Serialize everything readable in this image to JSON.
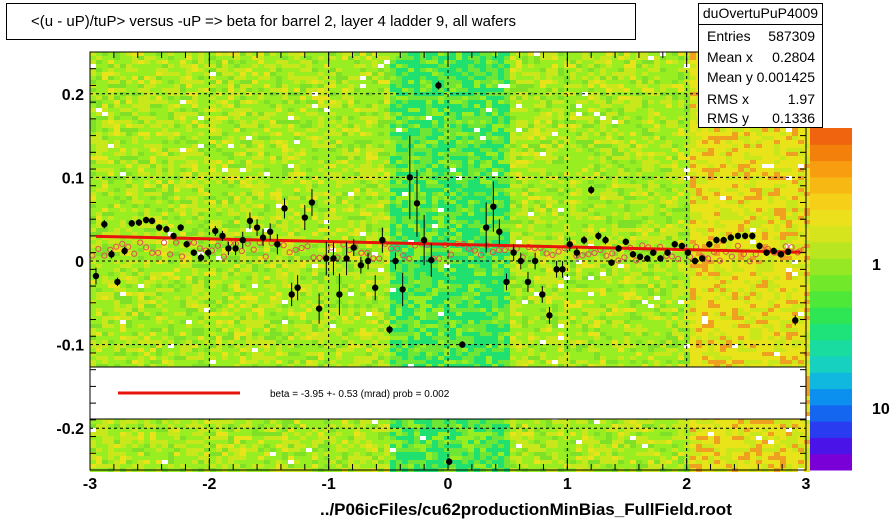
{
  "title": "<(u - uP)/tuP> versus  -uP => beta for barrel 2, layer 4 ladder 9, all wafers",
  "stats": {
    "name": "duOvertuPuP4009",
    "rows": [
      {
        "label": "Entries",
        "value": "587309"
      },
      {
        "label": "Mean x",
        "value": "0.2804"
      },
      {
        "label": "Mean y",
        "value": "0.001425"
      },
      {
        "label": "RMS x",
        "value": "1.97"
      },
      {
        "label": "RMS y",
        "value": "0.1336"
      }
    ]
  },
  "footer": "../P06icFiles/cu62productionMinBias_FullField.root",
  "fit_legend": "beta =   -3.95 +-  0.53 (mrad) prob = 0.002",
  "colorbar_labels": [
    "1",
    "10"
  ],
  "chart_data": {
    "type": "scatter",
    "xlim": [
      -3,
      3
    ],
    "ylim": [
      -0.25,
      0.25
    ],
    "x_ticks": [
      "-3",
      "-2",
      "-1",
      "0",
      "1",
      "2",
      "3"
    ],
    "y_ticks": [
      "-0.2",
      "-0.1",
      "0",
      "0.1",
      "0.2"
    ],
    "grid": true,
    "colors": {
      "fit_line": "#e8140c",
      "profile_points": "#000000",
      "open_points": "#e05050",
      "background_heatmap": [
        "#99ee22",
        "#c8e81c",
        "#e9e41a",
        "#20e070"
      ]
    },
    "fit_line": {
      "x": [
        -2.95,
        2.95
      ],
      "y": [
        0.0295,
        0.0105
      ]
    },
    "profile_points": [
      {
        "x": -2.95,
        "y": -0.018,
        "err": 0.01
      },
      {
        "x": -2.88,
        "y": 0.044,
        "err": 0.005
      },
      {
        "x": -2.82,
        "y": 0.008,
        "err": 0.005
      },
      {
        "x": -2.77,
        "y": -0.025,
        "err": 0.005
      },
      {
        "x": -2.71,
        "y": 0.012,
        "err": 0.005
      },
      {
        "x": -2.65,
        "y": 0.045,
        "err": 0.004
      },
      {
        "x": -2.59,
        "y": 0.046,
        "err": 0.004
      },
      {
        "x": -2.53,
        "y": 0.049,
        "err": 0.004
      },
      {
        "x": -2.48,
        "y": 0.048,
        "err": 0.004
      },
      {
        "x": -2.42,
        "y": 0.04,
        "err": 0.004
      },
      {
        "x": -2.36,
        "y": 0.038,
        "err": 0.004
      },
      {
        "x": -2.3,
        "y": 0.03,
        "err": 0.004
      },
      {
        "x": -2.24,
        "y": 0.04,
        "err": 0.004
      },
      {
        "x": -2.19,
        "y": 0.02,
        "err": 0.004
      },
      {
        "x": -2.13,
        "y": 0.01,
        "err": 0.004
      },
      {
        "x": -2.07,
        "y": 0.004,
        "err": 0.005
      },
      {
        "x": -2.01,
        "y": 0.01,
        "err": 0.005
      },
      {
        "x": -1.95,
        "y": 0.036,
        "err": 0.006
      },
      {
        "x": -1.89,
        "y": 0.03,
        "err": 0.006
      },
      {
        "x": -1.84,
        "y": 0.015,
        "err": 0.008
      },
      {
        "x": -1.78,
        "y": 0.015,
        "err": 0.008
      },
      {
        "x": -1.72,
        "y": 0.025,
        "err": 0.01
      },
      {
        "x": -1.66,
        "y": 0.048,
        "err": 0.01
      },
      {
        "x": -1.6,
        "y": 0.04,
        "err": 0.01
      },
      {
        "x": -1.55,
        "y": 0.028,
        "err": 0.01
      },
      {
        "x": -1.49,
        "y": 0.035,
        "err": 0.01
      },
      {
        "x": -1.43,
        "y": 0.02,
        "err": 0.012
      },
      {
        "x": -1.37,
        "y": 0.063,
        "err": 0.012
      },
      {
        "x": -1.31,
        "y": -0.04,
        "err": 0.014
      },
      {
        "x": -1.26,
        "y": -0.032,
        "err": 0.015
      },
      {
        "x": -1.2,
        "y": 0.052,
        "err": 0.015
      },
      {
        "x": -1.14,
        "y": 0.07,
        "err": 0.016
      },
      {
        "x": -1.08,
        "y": -0.057,
        "err": 0.018
      },
      {
        "x": -1.02,
        "y": 0.003,
        "err": 0.02
      },
      {
        "x": -0.96,
        "y": 0.003,
        "err": 0.02
      },
      {
        "x": -0.91,
        "y": -0.04,
        "err": 0.025
      },
      {
        "x": -0.85,
        "y": 0.003,
        "err": 0.02
      },
      {
        "x": -0.79,
        "y": 0.016,
        "err": 0.01
      },
      {
        "x": -0.73,
        "y": -0.005,
        "err": 0.01
      },
      {
        "x": -0.67,
        "y": 0.0,
        "err": 0.01
      },
      {
        "x": -0.61,
        "y": -0.032,
        "err": 0.015
      },
      {
        "x": -0.55,
        "y": 0.025,
        "err": 0.015
      },
      {
        "x": -0.49,
        "y": -0.082,
        "err": 0.005
      },
      {
        "x": -0.44,
        "y": 0.0,
        "err": 0.01
      },
      {
        "x": -0.38,
        "y": -0.034,
        "err": 0.02
      },
      {
        "x": -0.32,
        "y": 0.1,
        "err": 0.05
      },
      {
        "x": -0.26,
        "y": 0.069,
        "err": 0.04
      },
      {
        "x": -0.2,
        "y": 0.025,
        "err": 0.03
      },
      {
        "x": -0.14,
        "y": 0.001,
        "err": 0.02
      },
      {
        "x": -0.08,
        "y": 0.21,
        "err": 0.005
      },
      {
        "x": 0.01,
        "y": -0.24,
        "err": 0.004
      },
      {
        "x": 0.12,
        "y": -0.1,
        "err": 0.004
      },
      {
        "x": 0.32,
        "y": 0.04,
        "err": 0.03
      },
      {
        "x": 0.38,
        "y": 0.065,
        "err": 0.03
      },
      {
        "x": 0.43,
        "y": 0.035,
        "err": 0.015
      },
      {
        "x": 0.49,
        "y": -0.025,
        "err": 0.01
      },
      {
        "x": 0.55,
        "y": 0.01,
        "err": 0.01
      },
      {
        "x": 0.61,
        "y": 0.0,
        "err": 0.01
      },
      {
        "x": 0.67,
        "y": -0.025,
        "err": 0.012
      },
      {
        "x": 0.73,
        "y": 0.0,
        "err": 0.01
      },
      {
        "x": 0.79,
        "y": -0.04,
        "err": 0.01
      },
      {
        "x": 0.85,
        "y": -0.065,
        "err": 0.01
      },
      {
        "x": 0.91,
        "y": -0.01,
        "err": 0.01
      },
      {
        "x": 0.96,
        "y": -0.01,
        "err": 0.01
      },
      {
        "x": 1.02,
        "y": 0.02,
        "err": 0.008
      },
      {
        "x": 1.08,
        "y": 0.01,
        "err": 0.006
      },
      {
        "x": 1.14,
        "y": 0.025,
        "err": 0.005
      },
      {
        "x": 1.2,
        "y": 0.085,
        "err": 0.005
      },
      {
        "x": 1.26,
        "y": 0.03,
        "err": 0.005
      },
      {
        "x": 1.32,
        "y": 0.025,
        "err": 0.005
      },
      {
        "x": 1.37,
        "y": -0.002,
        "err": 0.004
      },
      {
        "x": 1.43,
        "y": 0.015,
        "err": 0.004
      },
      {
        "x": 1.49,
        "y": 0.023,
        "err": 0.004
      },
      {
        "x": 1.55,
        "y": 0.008,
        "err": 0.004
      },
      {
        "x": 1.61,
        "y": 0.005,
        "err": 0.004
      },
      {
        "x": 1.67,
        "y": 0.003,
        "err": 0.004
      },
      {
        "x": 1.72,
        "y": 0.01,
        "err": 0.004
      },
      {
        "x": 1.78,
        "y": 0.003,
        "err": 0.004
      },
      {
        "x": 1.84,
        "y": 0.01,
        "err": 0.004
      },
      {
        "x": 1.9,
        "y": 0.02,
        "err": 0.004
      },
      {
        "x": 1.96,
        "y": 0.018,
        "err": 0.004
      },
      {
        "x": 2.01,
        "y": 0.01,
        "err": 0.004
      },
      {
        "x": 2.07,
        "y": 0.0,
        "err": 0.004
      },
      {
        "x": 2.13,
        "y": 0.003,
        "err": 0.004
      },
      {
        "x": 2.19,
        "y": 0.02,
        "err": 0.004
      },
      {
        "x": 2.25,
        "y": 0.025,
        "err": 0.004
      },
      {
        "x": 2.31,
        "y": 0.025,
        "err": 0.004
      },
      {
        "x": 2.37,
        "y": 0.028,
        "err": 0.004
      },
      {
        "x": 2.43,
        "y": 0.03,
        "err": 0.004
      },
      {
        "x": 2.49,
        "y": 0.03,
        "err": 0.004
      },
      {
        "x": 2.55,
        "y": 0.03,
        "err": 0.004
      },
      {
        "x": 2.61,
        "y": 0.018,
        "err": 0.004
      },
      {
        "x": 2.67,
        "y": 0.01,
        "err": 0.004
      },
      {
        "x": 2.73,
        "y": 0.012,
        "err": 0.004
      },
      {
        "x": 2.79,
        "y": 0.008,
        "err": 0.004
      },
      {
        "x": 2.85,
        "y": 0.011,
        "err": 0.004
      },
      {
        "x": 2.91,
        "y": -0.071,
        "err": 0.006
      }
    ],
    "open_points_x_range": [
      -2.98,
      2.98
    ],
    "open_points_y_range": [
      -0.012,
      0.022
    ]
  }
}
